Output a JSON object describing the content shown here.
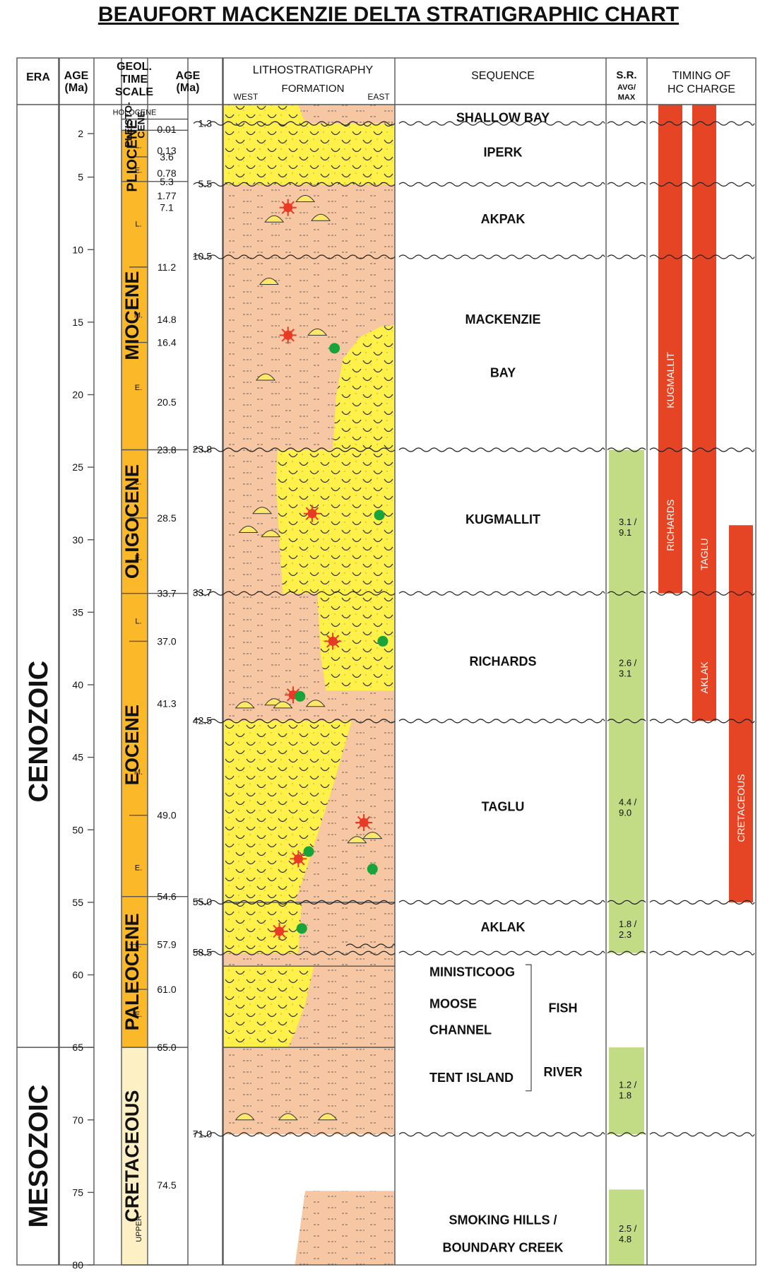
{
  "title": "BEAUFORT MACKENZIE DELTA STRATIGRAPHIC CHART",
  "headers": {
    "era": "ERA",
    "age1": [
      "AGE",
      "(Ma)"
    ],
    "geol": [
      "GEOL.",
      "TIME",
      "SCALE"
    ],
    "age2": [
      "AGE",
      "(Ma)"
    ],
    "litho": [
      "LITHOSTRATIGRAPHY",
      "FORMATION"
    ],
    "west": "WEST",
    "east": "EAST",
    "sequence": "SEQUENCE",
    "sr": [
      "S.R.",
      "AVG/",
      "MAX"
    ],
    "timing": [
      "TIMING OF",
      "HC CHARGE"
    ]
  },
  "axis": {
    "min": 0,
    "max": 80,
    "ticks": [
      2,
      5,
      10,
      15,
      20,
      25,
      30,
      35,
      40,
      45,
      50,
      55,
      60,
      65,
      70,
      75,
      80
    ]
  },
  "eras": [
    {
      "name": "CENOZOIC",
      "from": 0,
      "to": 65
    },
    {
      "name": "MESOZOIC",
      "from": 65,
      "to": 80
    }
  ],
  "epochs": [
    {
      "name": "HOLOCENE",
      "from": 0,
      "to": 1,
      "color": "#ffffff",
      "small": true
    },
    {
      "name": "PLEISTO-CENE",
      "lines": [
        "PLEISTO-",
        "CENE"
      ],
      "from": 1,
      "to": 1.77,
      "color": "#ffffff"
    },
    {
      "name": "PLIOCENE",
      "from": 1.77,
      "to": 5.3,
      "color": "#fbb829"
    },
    {
      "name": "MIOCENE",
      "from": 5.3,
      "to": 23.8,
      "color": "#fbb829"
    },
    {
      "name": "OLIGOCENE",
      "from": 23.8,
      "to": 33.7,
      "color": "#fbb829"
    },
    {
      "name": "EOCENE",
      "from": 33.7,
      "to": 54.6,
      "color": "#fbb829"
    },
    {
      "name": "PALEOCENE",
      "from": 54.6,
      "to": 65,
      "color": "#fbb829"
    },
    {
      "name": "CRETACEOUS",
      "from": 65,
      "to": 80,
      "color": "#fdf0c4"
    }
  ],
  "subdivisions": [
    {
      "label": "L.",
      "at": 2.8
    },
    {
      "label": "E.",
      "at": 4.5
    },
    {
      "label": "L.",
      "at": 8.2
    },
    {
      "label": "M.",
      "at": 14.5
    },
    {
      "label": "E.",
      "at": 19.5
    },
    {
      "label": "L.",
      "at": 26.0
    },
    {
      "label": "E.",
      "at": 31.2
    },
    {
      "label": "L.",
      "at": 35.6
    },
    {
      "label": "M.",
      "at": 46.0
    },
    {
      "label": "E.",
      "at": 52.6
    },
    {
      "label": "L.",
      "at": 57.9
    },
    {
      "label": "E.",
      "at": 62.7
    },
    {
      "label": "UPPER",
      "at": 77.5,
      "vertical": true
    }
  ],
  "subLines": [
    3.6,
    11.2,
    16.4,
    28.5,
    37.0,
    49.0,
    57.9,
    61.0
  ],
  "geolAges": [
    {
      "label": "0.01",
      "at": 1.0
    },
    {
      "label": "0.13",
      "at": 2.6
    },
    {
      "label": "0.78",
      "at": 4.2
    },
    {
      "label": "1.77",
      "at": 1.77
    },
    {
      "label": "3.6",
      "at": 3.6
    },
    {
      "label": "5.3",
      "at": 5.3
    },
    {
      "label": "7.1",
      "at": 7.1
    },
    {
      "label": "11.2",
      "at": 11.2
    },
    {
      "label": "14.8",
      "at": 14.8
    },
    {
      "label": "16.4",
      "at": 16.4
    },
    {
      "label": "20.5",
      "at": 20.5
    },
    {
      "label": "23.8",
      "at": 23.8
    },
    {
      "label": "28.5",
      "at": 28.5
    },
    {
      "label": "33.7",
      "at": 33.7
    },
    {
      "label": "37.0",
      "at": 37.0
    },
    {
      "label": "41.3",
      "at": 41.3
    },
    {
      "label": "49.0",
      "at": 49.0
    },
    {
      "label": "54.6",
      "at": 54.6
    },
    {
      "label": "57.9",
      "at": 57.9
    },
    {
      "label": "61.0",
      "at": 61.0
    },
    {
      "label": "65.0",
      "at": 65.0
    },
    {
      "label": "74.5",
      "at": 74.5
    }
  ],
  "seqAges": [
    {
      "label": "1.3",
      "at": 1.3
    },
    {
      "label": "5.5",
      "at": 5.5
    },
    {
      "label": "10.5",
      "at": 10.5
    },
    {
      "label": "23.8",
      "at": 23.8
    },
    {
      "label": "33.7",
      "at": 33.7
    },
    {
      "label": "42.5",
      "at": 42.5
    },
    {
      "label": "55.0",
      "at": 55.0
    },
    {
      "label": "58.5",
      "at": 58.5
    },
    {
      "label": "71.0",
      "at": 71.0
    }
  ],
  "unconformities": [
    1.3,
    5.5,
    10.5,
    23.8,
    33.7,
    42.5,
    55.0,
    58.5,
    71.0
  ],
  "sequences": [
    {
      "lines": [
        "SHALLOW BAY"
      ],
      "at": 0.9
    },
    {
      "lines": [
        "IPERK"
      ],
      "at": 3.3
    },
    {
      "lines": [
        "AKPAK"
      ],
      "at": 7.9
    },
    {
      "lines": [
        "MACKENZIE"
      ],
      "at": 14.8
    },
    {
      "lines": [
        "BAY"
      ],
      "at": 18.5
    },
    {
      "lines": [
        "KUGMALLIT"
      ],
      "at": 28.6
    },
    {
      "lines": [
        "RICHARDS"
      ],
      "at": 38.4
    },
    {
      "lines": [
        "TAGLU"
      ],
      "at": 48.4
    },
    {
      "lines": [
        "AKLAK"
      ],
      "at": 56.7
    },
    {
      "lines": [
        "SMOKING HILLS /"
      ],
      "at": 76.9
    },
    {
      "lines": [
        "BOUNDARY CREEK"
      ],
      "at": 78.8
    }
  ],
  "fishRiver": {
    "members": [
      {
        "label": "MINISTICOOG",
        "at": 59.8
      },
      {
        "label": "MOOSE",
        "at": 62.0
      },
      {
        "label": "CHANNEL",
        "at": 63.8
      },
      {
        "label": "TENT ISLAND",
        "at": 67.1
      }
    ],
    "group": [
      {
        "label": "FISH",
        "at": 62.3
      },
      {
        "label": "RIVER",
        "at": 66.7
      }
    ]
  },
  "sourceRock": [
    {
      "text": [
        "3.1 /",
        "9.1"
      ],
      "from": 23.8,
      "to": 33.7,
      "labelAt": 29.0
    },
    {
      "text": [
        "2.6 /",
        "3.1"
      ],
      "from": 33.7,
      "to": 42.5,
      "labelAt": 38.7
    },
    {
      "text": [
        "4.4 /",
        "9.0"
      ],
      "from": 42.5,
      "to": 55.0,
      "labelAt": 48.3
    },
    {
      "text": [
        "1.8 /",
        "2.3"
      ],
      "from": 55.0,
      "to": 58.5,
      "labelAt": 56.7
    },
    {
      "text": [
        "1.2 /",
        "1.8"
      ],
      "from": 65.0,
      "to": 71.0,
      "labelAt": 67.8
    },
    {
      "text": [
        "2.5 /",
        "4.8"
      ],
      "from": 74.8,
      "to": 80.0,
      "labelAt": 77.7
    }
  ],
  "hcCharge": [
    {
      "name": "KUGMALLIT",
      "from": 0,
      "to": 33.7,
      "labelAt": 19.0,
      "col": 0
    },
    {
      "name": "RICHARDS",
      "from": 0,
      "to": 33.7,
      "labelAt": 29.0,
      "col": 0
    },
    {
      "name": "TAGLU",
      "from": 0,
      "to": 42.5,
      "labelAt": 31.0,
      "col": 1
    },
    {
      "name": "AKLAK",
      "from": 0,
      "to": 42.5,
      "labelAt": 39.5,
      "col": 1
    },
    {
      "name": "CRETACEOUS",
      "from": 29.0,
      "to": 55.0,
      "labelAt": 48.5,
      "col": 2
    }
  ],
  "colors": {
    "sand": "#fff04a",
    "shale": "#f7c6a2",
    "srGreen": "#c2dc85",
    "hcRed": "#e54524",
    "gridLine": "#555555",
    "wavy": "#222222",
    "oilStar": "#e83a25",
    "gasDot": "#19a43b",
    "mound": "#fde86a"
  },
  "symbols": {
    "stars": [
      [
        38,
        7.1
      ],
      [
        38,
        15.9
      ],
      [
        52,
        28.2
      ],
      [
        64,
        37.0
      ],
      [
        41,
        40.7
      ],
      [
        44,
        52.0
      ],
      [
        82,
        49.5
      ],
      [
        33,
        57.0
      ]
    ],
    "dots": [
      [
        65,
        16.8
      ],
      [
        91,
        28.3
      ],
      [
        93,
        37.0
      ],
      [
        45,
        40.8
      ],
      [
        50,
        51.5
      ],
      [
        87,
        52.7
      ],
      [
        46,
        56.8
      ]
    ],
    "mounds": [
      [
        30,
        8.1
      ],
      [
        48,
        6.7
      ],
      [
        57,
        8.0
      ],
      [
        27,
        12.4
      ],
      [
        25,
        19.0
      ],
      [
        55,
        15.9
      ],
      [
        15,
        29.5
      ],
      [
        23,
        28.2
      ],
      [
        28,
        29.8
      ],
      [
        13,
        41.6
      ],
      [
        30,
        41.4
      ],
      [
        35,
        41.6
      ],
      [
        54,
        41.5
      ],
      [
        78,
        50.9
      ],
      [
        87,
        50.6
      ],
      [
        13,
        70.0
      ],
      [
        38,
        70.0
      ],
      [
        61,
        70.0
      ]
    ]
  }
}
